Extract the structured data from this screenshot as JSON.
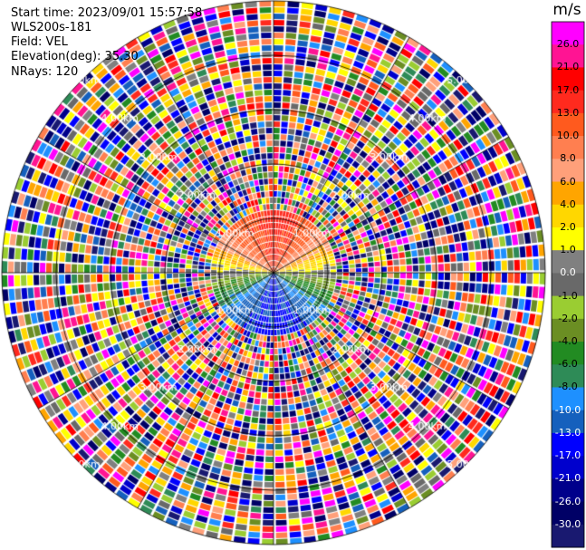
{
  "info": {
    "start_time": "Start time: 2023/09/01 15:57:58",
    "site": "WLS200s-181",
    "field": "Field: VEL",
    "elevation": "Elevation(deg): 35.30",
    "nrays": "NRays: 120"
  },
  "chart_data": {
    "type": "heatmap",
    "projection": "polar PPI",
    "field": "VEL",
    "units": "m/s",
    "n_rays": 120,
    "range_rings_km": [
      1,
      2,
      3,
      4,
      5
    ],
    "ring_labels": [
      "1.00km",
      "2.00km",
      "3.00km",
      "4.00km",
      "5.00km"
    ],
    "max_range_km": 5.0,
    "valid_data_range_km": 1.1,
    "radial_velocity_pattern": "positive (red) toward north, negative (blue) toward south, near zero along east-west; noise beyond ~1.1 km",
    "colorbar": {
      "unit": "m/s",
      "labels": [
        "26.0",
        "21.0",
        "17.0",
        "13.0",
        "10.0",
        "8.0",
        "6.0",
        "4.0",
        "2.0",
        "1.0",
        "0.0",
        "-1.0",
        "-2.0",
        "-4.0",
        "-6.0",
        "-8.0",
        "-10.0",
        "-13.0",
        "-17.0",
        "-21.0",
        "-26.0",
        "-30.0"
      ],
      "colors": [
        "#ff00ff",
        "#ff1493",
        "#ff0000",
        "#ff2a1e",
        "#ff5a1e",
        "#ff7f50",
        "#ffa07a",
        "#ffa500",
        "#ffd700",
        "#ffff00",
        "#808080",
        "#696969",
        "#9acd32",
        "#6b8e23",
        "#228b22",
        "#2e8b57",
        "#1e90ff",
        "#1560bd",
        "#0000ff",
        "#0000cd",
        "#00008b",
        "#000066",
        "#191970"
      ]
    }
  }
}
